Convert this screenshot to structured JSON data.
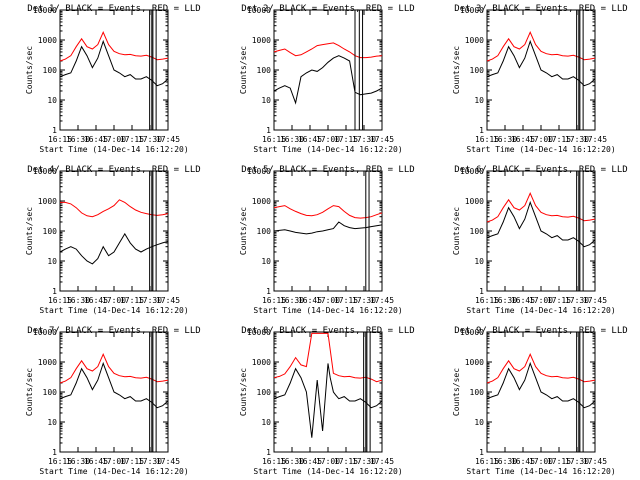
{
  "figure": {
    "xlabel": "Start Time (14-Dec-14 16:12:20)",
    "ylabel": "Counts/sec",
    "x_tick_labels": [
      "16:15",
      "16:30",
      "16:45",
      "17:00",
      "17:15",
      "17:30",
      "17:45"
    ],
    "y_tick_labels": [
      "1",
      "10",
      "100",
      "1000",
      "10000"
    ],
    "colors": {
      "events": "#000000",
      "lld": "#ff0000",
      "frame": "#000000"
    }
  },
  "chart_data": [
    {
      "type": "line",
      "title": "Det 1/ BLACK = Events, RED = LLD",
      "x_unit": "minutes after 16:12:20",
      "xlim": [
        0,
        100
      ],
      "ylim": [
        1,
        10000
      ],
      "yscale": "log",
      "markers": [
        83,
        85,
        86,
        89
      ],
      "series": [
        {
          "name": "Events",
          "color": "#000000",
          "x": [
            0,
            5,
            10,
            15,
            20,
            25,
            30,
            35,
            40,
            45,
            50,
            55,
            60,
            65,
            70,
            75,
            80,
            85,
            90,
            95,
            100
          ],
          "values": [
            60,
            70,
            80,
            200,
            600,
            300,
            120,
            250,
            900,
            300,
            100,
            80,
            60,
            70,
            50,
            50,
            60,
            45,
            30,
            35,
            50
          ]
        },
        {
          "name": "LLD",
          "color": "#ff0000",
          "x": [
            0,
            5,
            10,
            15,
            20,
            25,
            30,
            35,
            40,
            45,
            50,
            55,
            60,
            65,
            70,
            75,
            80,
            85,
            90,
            95,
            100
          ],
          "values": [
            200,
            230,
            300,
            600,
            1100,
            600,
            500,
            700,
            1800,
            700,
            420,
            350,
            320,
            330,
            300,
            290,
            310,
            270,
            220,
            230,
            250
          ]
        }
      ]
    },
    {
      "type": "line",
      "title": "Det 2/ BLACK = Events, RED = LLD",
      "x_unit": "minutes after 16:12:20",
      "xlim": [
        0,
        100
      ],
      "ylim": [
        1,
        10000
      ],
      "yscale": "log",
      "markers": [
        75,
        79,
        82
      ],
      "series": [
        {
          "name": "Events",
          "color": "#000000",
          "x": [
            0,
            5,
            10,
            15,
            20,
            25,
            30,
            35,
            40,
            45,
            50,
            55,
            60,
            65,
            70,
            75,
            80,
            85,
            90,
            95,
            100
          ],
          "values": [
            20,
            25,
            30,
            25,
            8,
            60,
            80,
            100,
            90,
            120,
            180,
            250,
            300,
            250,
            200,
            18,
            15,
            16,
            17,
            20,
            25
          ]
        },
        {
          "name": "LLD",
          "color": "#ff0000",
          "x": [
            0,
            5,
            10,
            15,
            20,
            25,
            30,
            35,
            40,
            45,
            50,
            55,
            60,
            65,
            70,
            75,
            80,
            85,
            90,
            95,
            100
          ],
          "values": [
            400,
            450,
            500,
            380,
            300,
            320,
            400,
            500,
            650,
            700,
            750,
            800,
            650,
            500,
            400,
            300,
            260,
            260,
            270,
            290,
            300
          ]
        }
      ]
    },
    {
      "type": "line",
      "title": "Det 3/ BLACK = Events, RED = LLD",
      "x_unit": "minutes after 16:12:20",
      "xlim": [
        0,
        100
      ],
      "ylim": [
        1,
        10000
      ],
      "yscale": "log",
      "markers": [
        83,
        85,
        86,
        89
      ],
      "series": [
        {
          "name": "Events",
          "color": "#000000",
          "x": [
            0,
            5,
            10,
            15,
            20,
            25,
            30,
            35,
            40,
            45,
            50,
            55,
            60,
            65,
            70,
            75,
            80,
            85,
            90,
            95,
            100
          ],
          "values": [
            60,
            70,
            80,
            200,
            600,
            300,
            120,
            250,
            900,
            300,
            100,
            80,
            60,
            70,
            50,
            50,
            60,
            45,
            30,
            35,
            50
          ]
        },
        {
          "name": "LLD",
          "color": "#ff0000",
          "x": [
            0,
            5,
            10,
            15,
            20,
            25,
            30,
            35,
            40,
            45,
            50,
            55,
            60,
            65,
            70,
            75,
            80,
            85,
            90,
            95,
            100
          ],
          "values": [
            200,
            230,
            300,
            600,
            1100,
            600,
            500,
            700,
            1800,
            700,
            420,
            350,
            320,
            330,
            300,
            290,
            310,
            270,
            220,
            230,
            250
          ]
        }
      ]
    },
    {
      "type": "line",
      "title": "Det 4/ BLACK = Events, RED = LLD",
      "x_unit": "minutes after 16:12:20",
      "xlim": [
        0,
        100
      ],
      "ylim": [
        1,
        10000
      ],
      "yscale": "log",
      "markers": [
        83,
        85,
        86,
        89
      ],
      "series": [
        {
          "name": "Events",
          "color": "#000000",
          "x": [
            0,
            5,
            10,
            15,
            20,
            25,
            30,
            35,
            40,
            45,
            50,
            55,
            60,
            65,
            70,
            75,
            80,
            85,
            90,
            95,
            100
          ],
          "values": [
            20,
            25,
            30,
            25,
            15,
            10,
            8,
            12,
            30,
            15,
            20,
            40,
            80,
            40,
            25,
            20,
            25,
            30,
            35,
            40,
            45
          ]
        },
        {
          "name": "LLD",
          "color": "#ff0000",
          "x": [
            0,
            5,
            10,
            15,
            20,
            25,
            30,
            35,
            40,
            45,
            50,
            55,
            60,
            65,
            70,
            75,
            80,
            85,
            90,
            95,
            100
          ],
          "values": [
            900,
            900,
            800,
            600,
            400,
            320,
            300,
            350,
            450,
            550,
            700,
            1100,
            900,
            650,
            500,
            420,
            380,
            350,
            330,
            350,
            380
          ]
        }
      ]
    },
    {
      "type": "line",
      "title": "Det 5/ BLACK = Events, RED = LLD",
      "x_unit": "minutes after 16:12:20",
      "xlim": [
        0,
        100
      ],
      "ylim": [
        1,
        10000
      ],
      "yscale": "log",
      "markers": [
        85,
        88
      ],
      "series": [
        {
          "name": "Events",
          "color": "#000000",
          "x": [
            0,
            5,
            10,
            15,
            20,
            25,
            30,
            35,
            40,
            45,
            50,
            55,
            60,
            65,
            70,
            75,
            80,
            85,
            90,
            95,
            100
          ],
          "values": [
            100,
            105,
            110,
            100,
            90,
            85,
            80,
            85,
            95,
            100,
            110,
            120,
            200,
            150,
            130,
            120,
            125,
            130,
            140,
            150,
            160
          ]
        },
        {
          "name": "LLD",
          "color": "#ff0000",
          "x": [
            0,
            5,
            10,
            15,
            20,
            25,
            30,
            35,
            40,
            45,
            50,
            55,
            60,
            65,
            70,
            75,
            80,
            85,
            90,
            95,
            100
          ],
          "values": [
            600,
            650,
            700,
            550,
            450,
            380,
            330,
            320,
            350,
            420,
            550,
            700,
            650,
            450,
            330,
            280,
            270,
            280,
            300,
            350,
            400
          ]
        }
      ]
    },
    {
      "type": "line",
      "title": "Det 6/ BLACK = Events, RED = LLD",
      "x_unit": "minutes after 16:12:20",
      "xlim": [
        0,
        100
      ],
      "ylim": [
        1,
        10000
      ],
      "yscale": "log",
      "markers": [
        83,
        85,
        86,
        89
      ],
      "series": [
        {
          "name": "Events",
          "color": "#000000",
          "x": [
            0,
            5,
            10,
            15,
            20,
            25,
            30,
            35,
            40,
            45,
            50,
            55,
            60,
            65,
            70,
            75,
            80,
            85,
            90,
            95,
            100
          ],
          "values": [
            60,
            70,
            80,
            200,
            600,
            300,
            120,
            250,
            900,
            300,
            100,
            80,
            60,
            70,
            50,
            50,
            60,
            45,
            30,
            35,
            50
          ]
        },
        {
          "name": "LLD",
          "color": "#ff0000",
          "x": [
            0,
            5,
            10,
            15,
            20,
            25,
            30,
            35,
            40,
            45,
            50,
            55,
            60,
            65,
            70,
            75,
            80,
            85,
            90,
            95,
            100
          ],
          "values": [
            200,
            230,
            300,
            600,
            1100,
            600,
            500,
            700,
            1800,
            700,
            420,
            350,
            320,
            330,
            300,
            290,
            310,
            270,
            220,
            230,
            250
          ]
        }
      ]
    },
    {
      "type": "line",
      "title": "Det 7/ BLACK = Events, RED = LLD",
      "x_unit": "minutes after 16:12:20",
      "xlim": [
        0,
        100
      ],
      "ylim": [
        1,
        10000
      ],
      "yscale": "log",
      "markers": [
        83,
        85,
        86,
        89
      ],
      "series": [
        {
          "name": "Events",
          "color": "#000000",
          "x": [
            0,
            5,
            10,
            15,
            20,
            25,
            30,
            35,
            40,
            45,
            50,
            55,
            60,
            65,
            70,
            75,
            80,
            85,
            90,
            95,
            100
          ],
          "values": [
            60,
            70,
            80,
            200,
            600,
            300,
            120,
            250,
            900,
            300,
            100,
            80,
            60,
            70,
            50,
            50,
            60,
            45,
            30,
            35,
            50
          ]
        },
        {
          "name": "LLD",
          "color": "#ff0000",
          "x": [
            0,
            5,
            10,
            15,
            20,
            25,
            30,
            35,
            40,
            45,
            50,
            55,
            60,
            65,
            70,
            75,
            80,
            85,
            90,
            95,
            100
          ],
          "values": [
            200,
            230,
            300,
            600,
            1100,
            600,
            500,
            700,
            1800,
            700,
            420,
            350,
            320,
            330,
            300,
            290,
            310,
            270,
            220,
            230,
            250
          ]
        }
      ]
    },
    {
      "type": "line",
      "title": "Det 8/ BLACK = Events, RED = LLD",
      "x_unit": "minutes after 16:12:20",
      "xlim": [
        0,
        100
      ],
      "ylim": [
        1,
        10000
      ],
      "yscale": "log",
      "markers": [
        83,
        85,
        86,
        89
      ],
      "series": [
        {
          "name": "Events",
          "color": "#000000",
          "x": [
            0,
            5,
            10,
            15,
            20,
            25,
            30,
            35,
            40,
            45,
            50,
            52,
            55,
            57,
            60,
            65,
            70,
            75,
            80,
            85,
            90,
            95,
            100
          ],
          "values": [
            60,
            70,
            80,
            200,
            600,
            300,
            100,
            3,
            250,
            5,
            900,
            300,
            100,
            80,
            60,
            70,
            50,
            50,
            60,
            45,
            30,
            35,
            50
          ]
        },
        {
          "name": "LLD",
          "color": "#ff0000",
          "x": [
            0,
            5,
            10,
            15,
            20,
            25,
            30,
            35,
            40,
            45,
            50,
            55,
            60,
            65,
            70,
            75,
            80,
            85,
            90,
            95,
            100
          ],
          "values": [
            300,
            330,
            400,
            700,
            1400,
            800,
            700,
            9000,
            9000,
            9000,
            9000,
            420,
            350,
            320,
            330,
            300,
            290,
            310,
            270,
            220,
            250
          ]
        }
      ]
    },
    {
      "type": "line",
      "title": "Det 9/ BLACK = Events, RED = LLD",
      "x_unit": "minutes after 16:12:20",
      "xlim": [
        0,
        100
      ],
      "ylim": [
        1,
        10000
      ],
      "yscale": "log",
      "markers": [
        83,
        85,
        86,
        89
      ],
      "series": [
        {
          "name": "Events",
          "color": "#000000",
          "x": [
            0,
            5,
            10,
            15,
            20,
            25,
            30,
            35,
            40,
            45,
            50,
            55,
            60,
            65,
            70,
            75,
            80,
            85,
            90,
            95,
            100
          ],
          "values": [
            60,
            70,
            80,
            200,
            600,
            300,
            120,
            250,
            900,
            300,
            100,
            80,
            60,
            70,
            50,
            50,
            60,
            45,
            30,
            35,
            50
          ]
        },
        {
          "name": "LLD",
          "color": "#ff0000",
          "x": [
            0,
            5,
            10,
            15,
            20,
            25,
            30,
            35,
            40,
            45,
            50,
            55,
            60,
            65,
            70,
            75,
            80,
            85,
            90,
            95,
            100
          ],
          "values": [
            200,
            230,
            300,
            600,
            1100,
            600,
            500,
            700,
            1800,
            700,
            420,
            350,
            320,
            330,
            300,
            290,
            310,
            270,
            220,
            230,
            250
          ]
        }
      ]
    }
  ]
}
